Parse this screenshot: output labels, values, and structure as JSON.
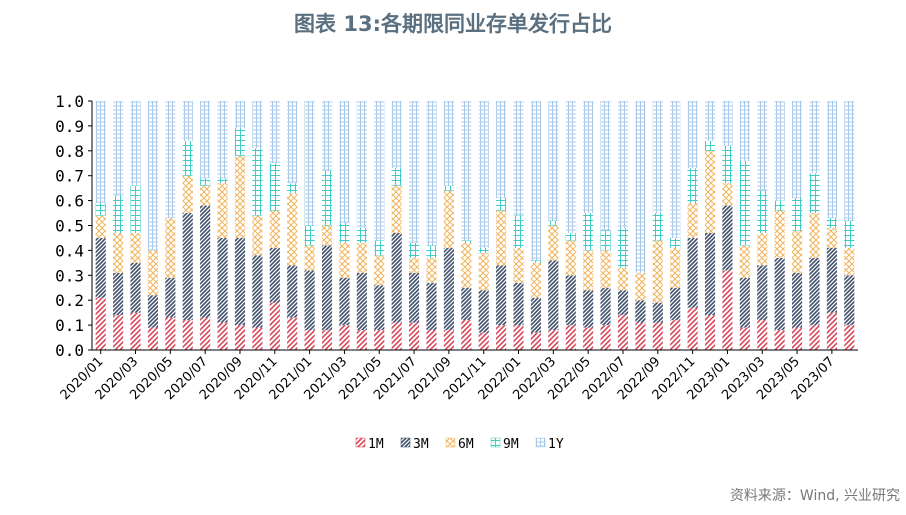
{
  "title": "图表 13:各期限同业存单发行占比",
  "source": "资料来源：Wind, 兴业研究",
  "colors": {
    "1M": "#d9485a",
    "3M": "#3f4f6e",
    "6M": "#f2b45c",
    "9M": "#3fcbc8",
    "1Y": "#a8c8e8"
  },
  "chart_data": {
    "type": "bar",
    "stacked": true,
    "title": "图表 13:各期限同业存单发行占比",
    "xlabel": "",
    "ylabel": "",
    "ylim": [
      0,
      1
    ],
    "yticks": [
      "0.0",
      "0.1",
      "0.2",
      "0.3",
      "0.4",
      "0.5",
      "0.6",
      "0.7",
      "0.8",
      "0.9",
      "1.0"
    ],
    "legend_position": "bottom",
    "grid": false,
    "categories": [
      "2020/01",
      "2020/02",
      "2020/03",
      "2020/04",
      "2020/05",
      "2020/06",
      "2020/07",
      "2020/08",
      "2020/09",
      "2020/10",
      "2020/11",
      "2020/12",
      "2021/01",
      "2021/02",
      "2021/03",
      "2021/04",
      "2021/05",
      "2021/06",
      "2021/07",
      "2021/08",
      "2021/09",
      "2021/10",
      "2021/11",
      "2021/12",
      "2022/01",
      "2022/02",
      "2022/03",
      "2022/04",
      "2022/05",
      "2022/06",
      "2022/07",
      "2022/08",
      "2022/09",
      "2022/10",
      "2022/11",
      "2022/12",
      "2023/01",
      "2023/02",
      "2023/03",
      "2023/04",
      "2023/05",
      "2023/06",
      "2023/07",
      "2023/08"
    ],
    "xtick_labels": [
      "2020/01",
      "2020/03",
      "2020/05",
      "2020/07",
      "2020/09",
      "2020/11",
      "2021/01",
      "2021/03",
      "2021/05",
      "2021/07",
      "2021/09",
      "2021/11",
      "2022/01",
      "2022/03",
      "2022/05",
      "2022/07",
      "2022/09",
      "2022/11",
      "2023/01",
      "2023/03",
      "2023/05",
      "2023/07"
    ],
    "series": [
      {
        "name": "1M",
        "values": [
          0.21,
          0.14,
          0.15,
          0.09,
          0.13,
          0.12,
          0.13,
          0.11,
          0.1,
          0.09,
          0.19,
          0.13,
          0.08,
          0.08,
          0.1,
          0.08,
          0.08,
          0.11,
          0.11,
          0.08,
          0.08,
          0.12,
          0.07,
          0.1,
          0.1,
          0.07,
          0.08,
          0.1,
          0.09,
          0.1,
          0.14,
          0.11,
          0.11,
          0.12,
          0.17,
          0.14,
          0.32,
          0.09,
          0.12,
          0.08,
          0.09,
          0.1,
          0.15,
          0.1
        ]
      },
      {
        "name": "3M",
        "values": [
          0.24,
          0.17,
          0.2,
          0.13,
          0.16,
          0.43,
          0.45,
          0.34,
          0.35,
          0.29,
          0.22,
          0.21,
          0.24,
          0.34,
          0.19,
          0.23,
          0.18,
          0.36,
          0.2,
          0.19,
          0.33,
          0.13,
          0.17,
          0.24,
          0.17,
          0.14,
          0.28,
          0.2,
          0.15,
          0.15,
          0.1,
          0.09,
          0.08,
          0.13,
          0.28,
          0.33,
          0.26,
          0.2,
          0.22,
          0.29,
          0.22,
          0.27,
          0.26,
          0.2
        ]
      },
      {
        "name": "6M",
        "values": [
          0.09,
          0.16,
          0.12,
          0.18,
          0.24,
          0.15,
          0.08,
          0.22,
          0.33,
          0.16,
          0.15,
          0.29,
          0.1,
          0.08,
          0.14,
          0.12,
          0.12,
          0.19,
          0.06,
          0.1,
          0.23,
          0.18,
          0.15,
          0.22,
          0.14,
          0.14,
          0.14,
          0.14,
          0.16,
          0.15,
          0.09,
          0.11,
          0.25,
          0.16,
          0.14,
          0.33,
          0.09,
          0.13,
          0.13,
          0.19,
          0.17,
          0.18,
          0.08,
          0.11
        ]
      },
      {
        "name": "9M",
        "values": [
          0.05,
          0.15,
          0.19,
          0.0,
          0.0,
          0.14,
          0.03,
          0.02,
          0.11,
          0.27,
          0.19,
          0.04,
          0.08,
          0.22,
          0.08,
          0.06,
          0.06,
          0.07,
          0.06,
          0.05,
          0.02,
          0.01,
          0.02,
          0.05,
          0.13,
          0.01,
          0.02,
          0.03,
          0.15,
          0.08,
          0.16,
          0.0,
          0.11,
          0.04,
          0.14,
          0.04,
          0.15,
          0.34,
          0.17,
          0.04,
          0.13,
          0.16,
          0.04,
          0.11
        ]
      },
      {
        "name": "1Y",
        "values": [
          0.41,
          0.38,
          0.34,
          0.6,
          0.47,
          0.16,
          0.31,
          0.31,
          0.11,
          0.19,
          0.25,
          0.33,
          0.5,
          0.28,
          0.49,
          0.51,
          0.56,
          0.27,
          0.57,
          0.58,
          0.34,
          0.56,
          0.59,
          0.39,
          0.46,
          0.64,
          0.48,
          0.53,
          0.45,
          0.52,
          0.51,
          0.69,
          0.45,
          0.55,
          0.27,
          0.16,
          0.18,
          0.24,
          0.36,
          0.4,
          0.39,
          0.29,
          0.47,
          0.48
        ]
      }
    ]
  }
}
